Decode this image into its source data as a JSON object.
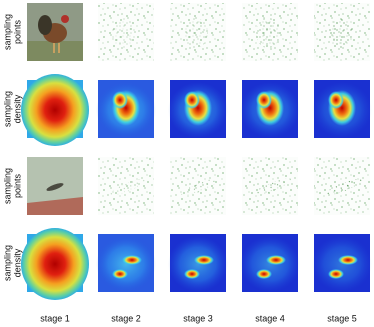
{
  "rows": [
    {
      "label_lines": [
        "sampling",
        "points"
      ]
    },
    {
      "label_lines": [
        "sampling",
        "density"
      ]
    },
    {
      "label_lines": [
        "sampling",
        "points"
      ]
    },
    {
      "label_lines": [
        "sampling",
        "density"
      ]
    }
  ],
  "column_labels": [
    "stage 1",
    "stage 2",
    "stage 3",
    "stage 4",
    "stage 5"
  ]
}
